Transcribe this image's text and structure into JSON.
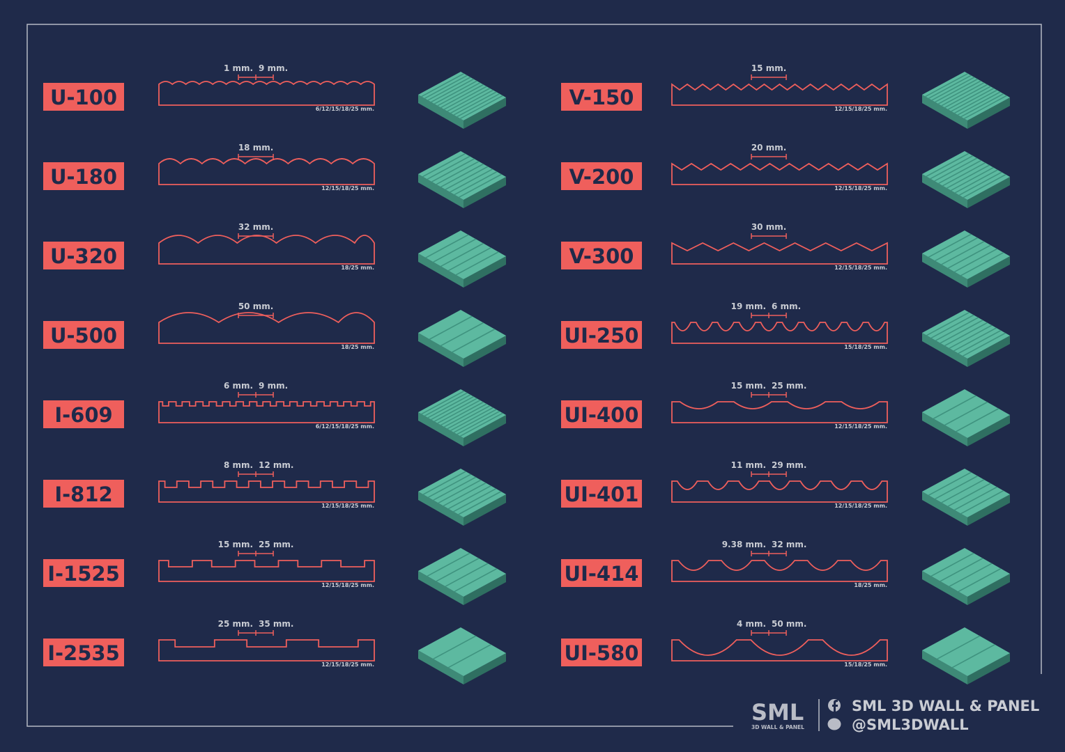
{
  "items": [
    {
      "code": "U-100",
      "dims": [
        "1 mm.",
        "9 mm."
      ],
      "thickness": "6/12/15/18/25 mm."
    },
    {
      "code": "U-180",
      "dims": [
        "18 mm."
      ],
      "thickness": "12/15/18/25 mm."
    },
    {
      "code": "U-320",
      "dims": [
        "32 mm."
      ],
      "thickness": "18/25 mm."
    },
    {
      "code": "U-500",
      "dims": [
        "50 mm."
      ],
      "thickness": "18/25 mm."
    },
    {
      "code": "I-609",
      "dims": [
        "6 mm.",
        "9 mm."
      ],
      "thickness": "6/12/15/18/25 mm."
    },
    {
      "code": "I-812",
      "dims": [
        "8 mm.",
        "12 mm."
      ],
      "thickness": "12/15/18/25 mm."
    },
    {
      "code": "I-1525",
      "dims": [
        "15 mm.",
        "25 mm."
      ],
      "thickness": "12/15/18/25 mm."
    },
    {
      "code": "I-2535",
      "dims": [
        "25 mm.",
        "35 mm."
      ],
      "thickness": "12/15/18/25 mm."
    },
    {
      "code": "V-150",
      "dims": [
        "15 mm."
      ],
      "thickness": "12/15/18/25 mm."
    },
    {
      "code": "V-200",
      "dims": [
        "20 mm."
      ],
      "thickness": "12/15/18/25 mm."
    },
    {
      "code": "V-300",
      "dims": [
        "30 mm."
      ],
      "thickness": "12/15/18/25 mm."
    },
    {
      "code": "UI-250",
      "dims": [
        "19 mm.",
        "6 mm."
      ],
      "thickness": "15/18/25 mm."
    },
    {
      "code": "UI-400",
      "dims": [
        "15 mm.",
        "25 mm."
      ],
      "thickness": "12/15/18/25 mm."
    },
    {
      "code": "UI-401",
      "dims": [
        "11 mm.",
        "29 mm."
      ],
      "thickness": "12/15/18/25 mm."
    },
    {
      "code": "UI-414",
      "dims": [
        "9.38 mm.",
        "32 mm."
      ],
      "thickness": "18/25 mm."
    },
    {
      "code": "UI-580",
      "dims": [
        "4 mm.",
        "50 mm."
      ],
      "thickness": "15/18/25 mm."
    }
  ],
  "footer": {
    "brand": "SML",
    "tagline": "3D WALL & PANEL",
    "facebook": "SML 3D WALL & PANEL",
    "line": "@SML3DWALL"
  }
}
